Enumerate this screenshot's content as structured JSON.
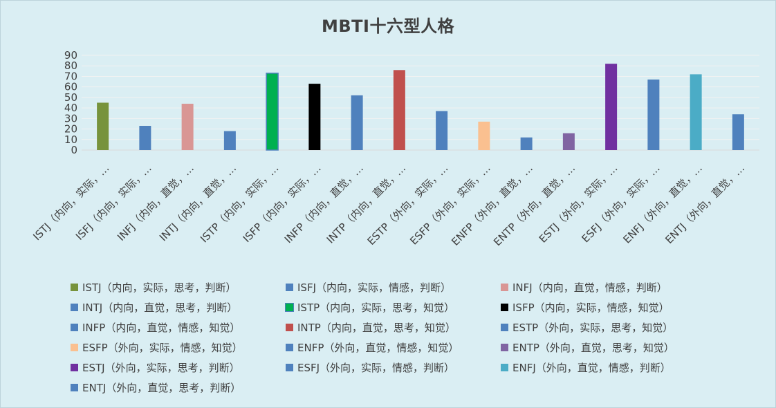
{
  "chart_data": {
    "type": "bar",
    "title": "MBTI十六型人格",
    "xlabel": "",
    "ylabel": "",
    "ylim": [
      0,
      90
    ],
    "yticks": [
      0,
      10,
      20,
      30,
      40,
      50,
      60,
      70,
      80,
      90
    ],
    "grid": true,
    "legend_position": "bottom",
    "categories": [
      "ISTJ（内向，实际，思考，判断）",
      "ISFJ（内向，实际，情感，判断）",
      "INFJ（内向，直觉，情感，判断）",
      "INTJ（内向，直觉，思考，判断）",
      "ISTP（内向，实际，思考，知觉）",
      "ISFP（内向，实际，情感，知觉）",
      "INFP（内向，直觉，情感，知觉）",
      "INTP（内向，直觉，思考，知觉）",
      "ESTP（外向，实际，思考，知觉）",
      "ESFP（外向，实际，情感，知觉）",
      "ENFP（外向，直觉，情感，知觉）",
      "ENTP（外向，直觉，思考，知觉）",
      "ESTJ（外向，实际，思考，判断）",
      "ESFJ（外向，实际，情感，判断）",
      "ENFJ（外向，直觉，情感，判断）",
      "ENTJ（外向，直觉，思考，判断）"
    ],
    "tick_labels": [
      "ISTJ（内向，实际，…",
      "ISFJ（内向，实际，…",
      "INFJ（内向，直觉，…",
      "INTJ（内向，直觉，…",
      "ISTP（内向，实际，…",
      "ISFP（内向，实际，…",
      "INFP（内向，直觉，…",
      "INTP（内向，直觉，…",
      "ESTP（外向，实际，…",
      "ESFP（外向，实际，…",
      "ENFP（外向，直觉，…",
      "ENTP（外向，直觉，…",
      "ESTJ（外向，实际，…",
      "ESFJ（外向，实际，…",
      "ENFJ（外向，直觉，…",
      "ENTJ（外向，直觉，…"
    ],
    "values": [
      45,
      23,
      44,
      18,
      73,
      63,
      52,
      76,
      37,
      27,
      12,
      16,
      82,
      67,
      72,
      34
    ],
    "colors": [
      "#77933c",
      "#4f81bd",
      "#d99694",
      "#4f81bd",
      "#00b050",
      "#000000",
      "#4f81bd",
      "#c0504d",
      "#4f81bd",
      "#fac090",
      "#4f81bd",
      "#8064a2",
      "#7030a0",
      "#4f81bd",
      "#4bacc6",
      "#4f81bd"
    ],
    "outline": [
      false,
      false,
      false,
      false,
      true,
      false,
      false,
      false,
      false,
      false,
      false,
      false,
      false,
      false,
      false,
      false
    ],
    "outline_color": "#4f81bd"
  },
  "style": {
    "background": "#daeef3",
    "gridline_color": "#f2f2f2",
    "axis_color": "#d9d9d9",
    "text_color": "#404040"
  }
}
